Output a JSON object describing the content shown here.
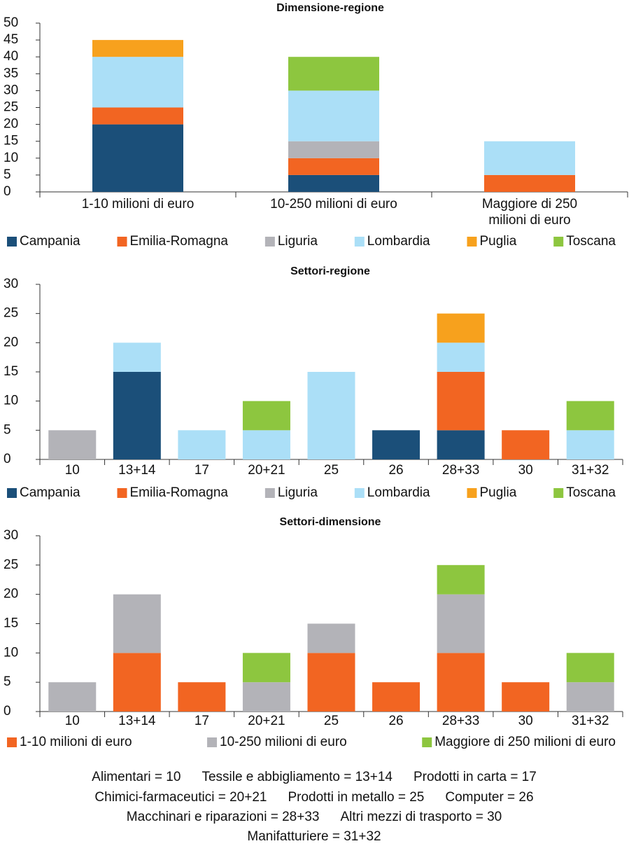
{
  "chart_data": [
    {
      "type": "bar",
      "stacked": true,
      "title": "Dimensione-regione",
      "categories": [
        "1-10 milioni di euro",
        "10-250 milioni di euro",
        "Maggiore di 250 milioni di euro"
      ],
      "series": [
        {
          "name": "Campania",
          "color": "#1b4f79",
          "values": [
            20,
            5,
            0
          ]
        },
        {
          "name": "Emilia-Romagna",
          "color": "#f26522",
          "values": [
            5,
            5,
            5
          ]
        },
        {
          "name": "Liguria",
          "color": "#b3b3b8",
          "values": [
            0,
            5,
            0
          ]
        },
        {
          "name": "Lombardia",
          "color": "#abdff7",
          "values": [
            15,
            15,
            10
          ]
        },
        {
          "name": "Puglia",
          "color": "#f7a11d",
          "values": [
            5,
            0,
            0
          ]
        },
        {
          "name": "Toscana",
          "color": "#8dc63f",
          "values": [
            0,
            10,
            0
          ]
        }
      ],
      "ylim": [
        0,
        50
      ],
      "yticks": [
        0,
        5,
        10,
        15,
        20,
        25,
        30,
        35,
        40,
        45,
        50
      ],
      "legend": "bottom"
    },
    {
      "type": "bar",
      "stacked": true,
      "title": "Settori-regione",
      "categories": [
        "10",
        "13+14",
        "17",
        "20+21",
        "25",
        "26",
        "28+33",
        "30",
        "31+32"
      ],
      "series": [
        {
          "name": "Campania",
          "color": "#1b4f79",
          "values": [
            0,
            15,
            0,
            0,
            0,
            5,
            5,
            0,
            0
          ]
        },
        {
          "name": "Emilia-Romagna",
          "color": "#f26522",
          "values": [
            0,
            0,
            0,
            0,
            0,
            0,
            10,
            5,
            0
          ]
        },
        {
          "name": "Liguria",
          "color": "#b3b3b8",
          "values": [
            5,
            0,
            0,
            0,
            0,
            0,
            0,
            0,
            0
          ]
        },
        {
          "name": "Lombardia",
          "color": "#abdff7",
          "values": [
            0,
            5,
            5,
            5,
            15,
            0,
            5,
            0,
            5
          ]
        },
        {
          "name": "Puglia",
          "color": "#f7a11d",
          "values": [
            0,
            0,
            0,
            0,
            0,
            0,
            5,
            0,
            0
          ]
        },
        {
          "name": "Toscana",
          "color": "#8dc63f",
          "values": [
            0,
            0,
            0,
            5,
            0,
            0,
            0,
            0,
            5
          ]
        }
      ],
      "ylim": [
        0,
        30
      ],
      "yticks": [
        0,
        5,
        10,
        15,
        20,
        25,
        30
      ],
      "legend": "bottom"
    },
    {
      "type": "bar",
      "stacked": true,
      "title": "Settori-dimensione",
      "categories": [
        "10",
        "13+14",
        "17",
        "20+21",
        "25",
        "26",
        "28+33",
        "30",
        "31+32"
      ],
      "series": [
        {
          "name": "1-10 milioni di euro",
          "color": "#f26522",
          "values": [
            0,
            10,
            5,
            0,
            10,
            5,
            10,
            5,
            0
          ]
        },
        {
          "name": "10-250 milioni di euro",
          "color": "#b3b3b8",
          "values": [
            5,
            10,
            0,
            5,
            5,
            0,
            10,
            0,
            5
          ]
        },
        {
          "name": "Maggiore di 250 milioni di euro",
          "color": "#8dc63f",
          "values": [
            0,
            0,
            0,
            5,
            0,
            0,
            5,
            0,
            5
          ]
        }
      ],
      "ylim": [
        0,
        30
      ],
      "yticks": [
        0,
        5,
        10,
        15,
        20,
        25,
        30
      ],
      "legend": "bottom"
    }
  ],
  "notes": [
    [
      "Alimentari = 10",
      "Tessile e abbigliamento = 13+14",
      "Prodotti in carta = 17"
    ],
    [
      "Chimici-farmaceutici = 20+21",
      "Prodotti in metallo = 25",
      "Computer = 26"
    ],
    [
      "Macchinari e riparazioni = 28+33",
      "Altri mezzi di trasporto = 30"
    ],
    [
      "Manifatturiere = 31+32"
    ]
  ]
}
